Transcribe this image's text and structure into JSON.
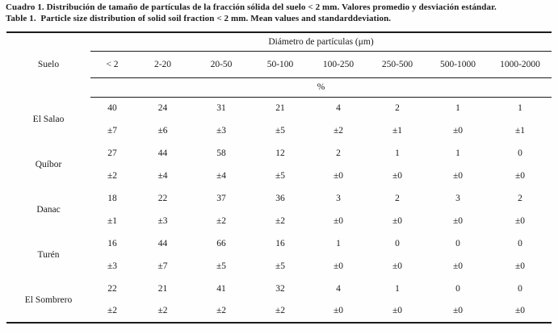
{
  "caption": {
    "line1_es": "Cuadro 1. Distribución de tamaño de partículas de la fracción sólida del suelo < 2 mm. Valores promedio y desviación estándar.",
    "line2_en": "Table 1.  Particle size distribution of solid soil fraction < 2 mm. Mean values and standarddeviation."
  },
  "table": {
    "group_header": "Diámetro de partículas (μm)",
    "row_header": "Suelo",
    "unit_header": "%",
    "columns": [
      "< 2",
      "2-20",
      "20-50",
      "50-100",
      "100-250",
      "250-500",
      "500-1000",
      "1000-2000"
    ],
    "rows": [
      {
        "soil": "El Salao",
        "mean": [
          "40",
          "24",
          "31",
          "21",
          "4",
          "2",
          "1",
          "1"
        ],
        "sd": [
          "±7",
          "±6",
          "±3",
          "±5",
          "±2",
          "±1",
          "±0",
          "±1"
        ]
      },
      {
        "soil": "Quíbor",
        "mean": [
          "27",
          "44",
          "58",
          "12",
          "2",
          "1",
          "1",
          "0"
        ],
        "sd": [
          "±2",
          "±4",
          "±4",
          "±5",
          "±0",
          "±0",
          "±0",
          "±0"
        ]
      },
      {
        "soil": "Danac",
        "mean": [
          "18",
          "22",
          "37",
          "36",
          "3",
          "2",
          "3",
          "2"
        ],
        "sd": [
          "±1",
          "±3",
          "±2",
          "±2",
          "±0",
          "±0",
          "±0",
          "±0"
        ]
      },
      {
        "soil": "Turén",
        "mean": [
          "16",
          "44",
          "66",
          "16",
          "1",
          "0",
          "0",
          "0"
        ],
        "sd": [
          "±3",
          "±7",
          "±5",
          "±5",
          "±0",
          "±0",
          "±0",
          "±0"
        ]
      },
      {
        "soil": "El Sombrero",
        "mean": [
          "22",
          "21",
          "41",
          "32",
          "4",
          "1",
          "0",
          "0"
        ],
        "sd": [
          "±2",
          "±2",
          "±2",
          "±2",
          "±0",
          "±0",
          "±0",
          "±0"
        ]
      }
    ]
  },
  "colors": {
    "ink": "#1b1b1b",
    "rule": "#1c1c1c",
    "paper": "#ffffff"
  }
}
